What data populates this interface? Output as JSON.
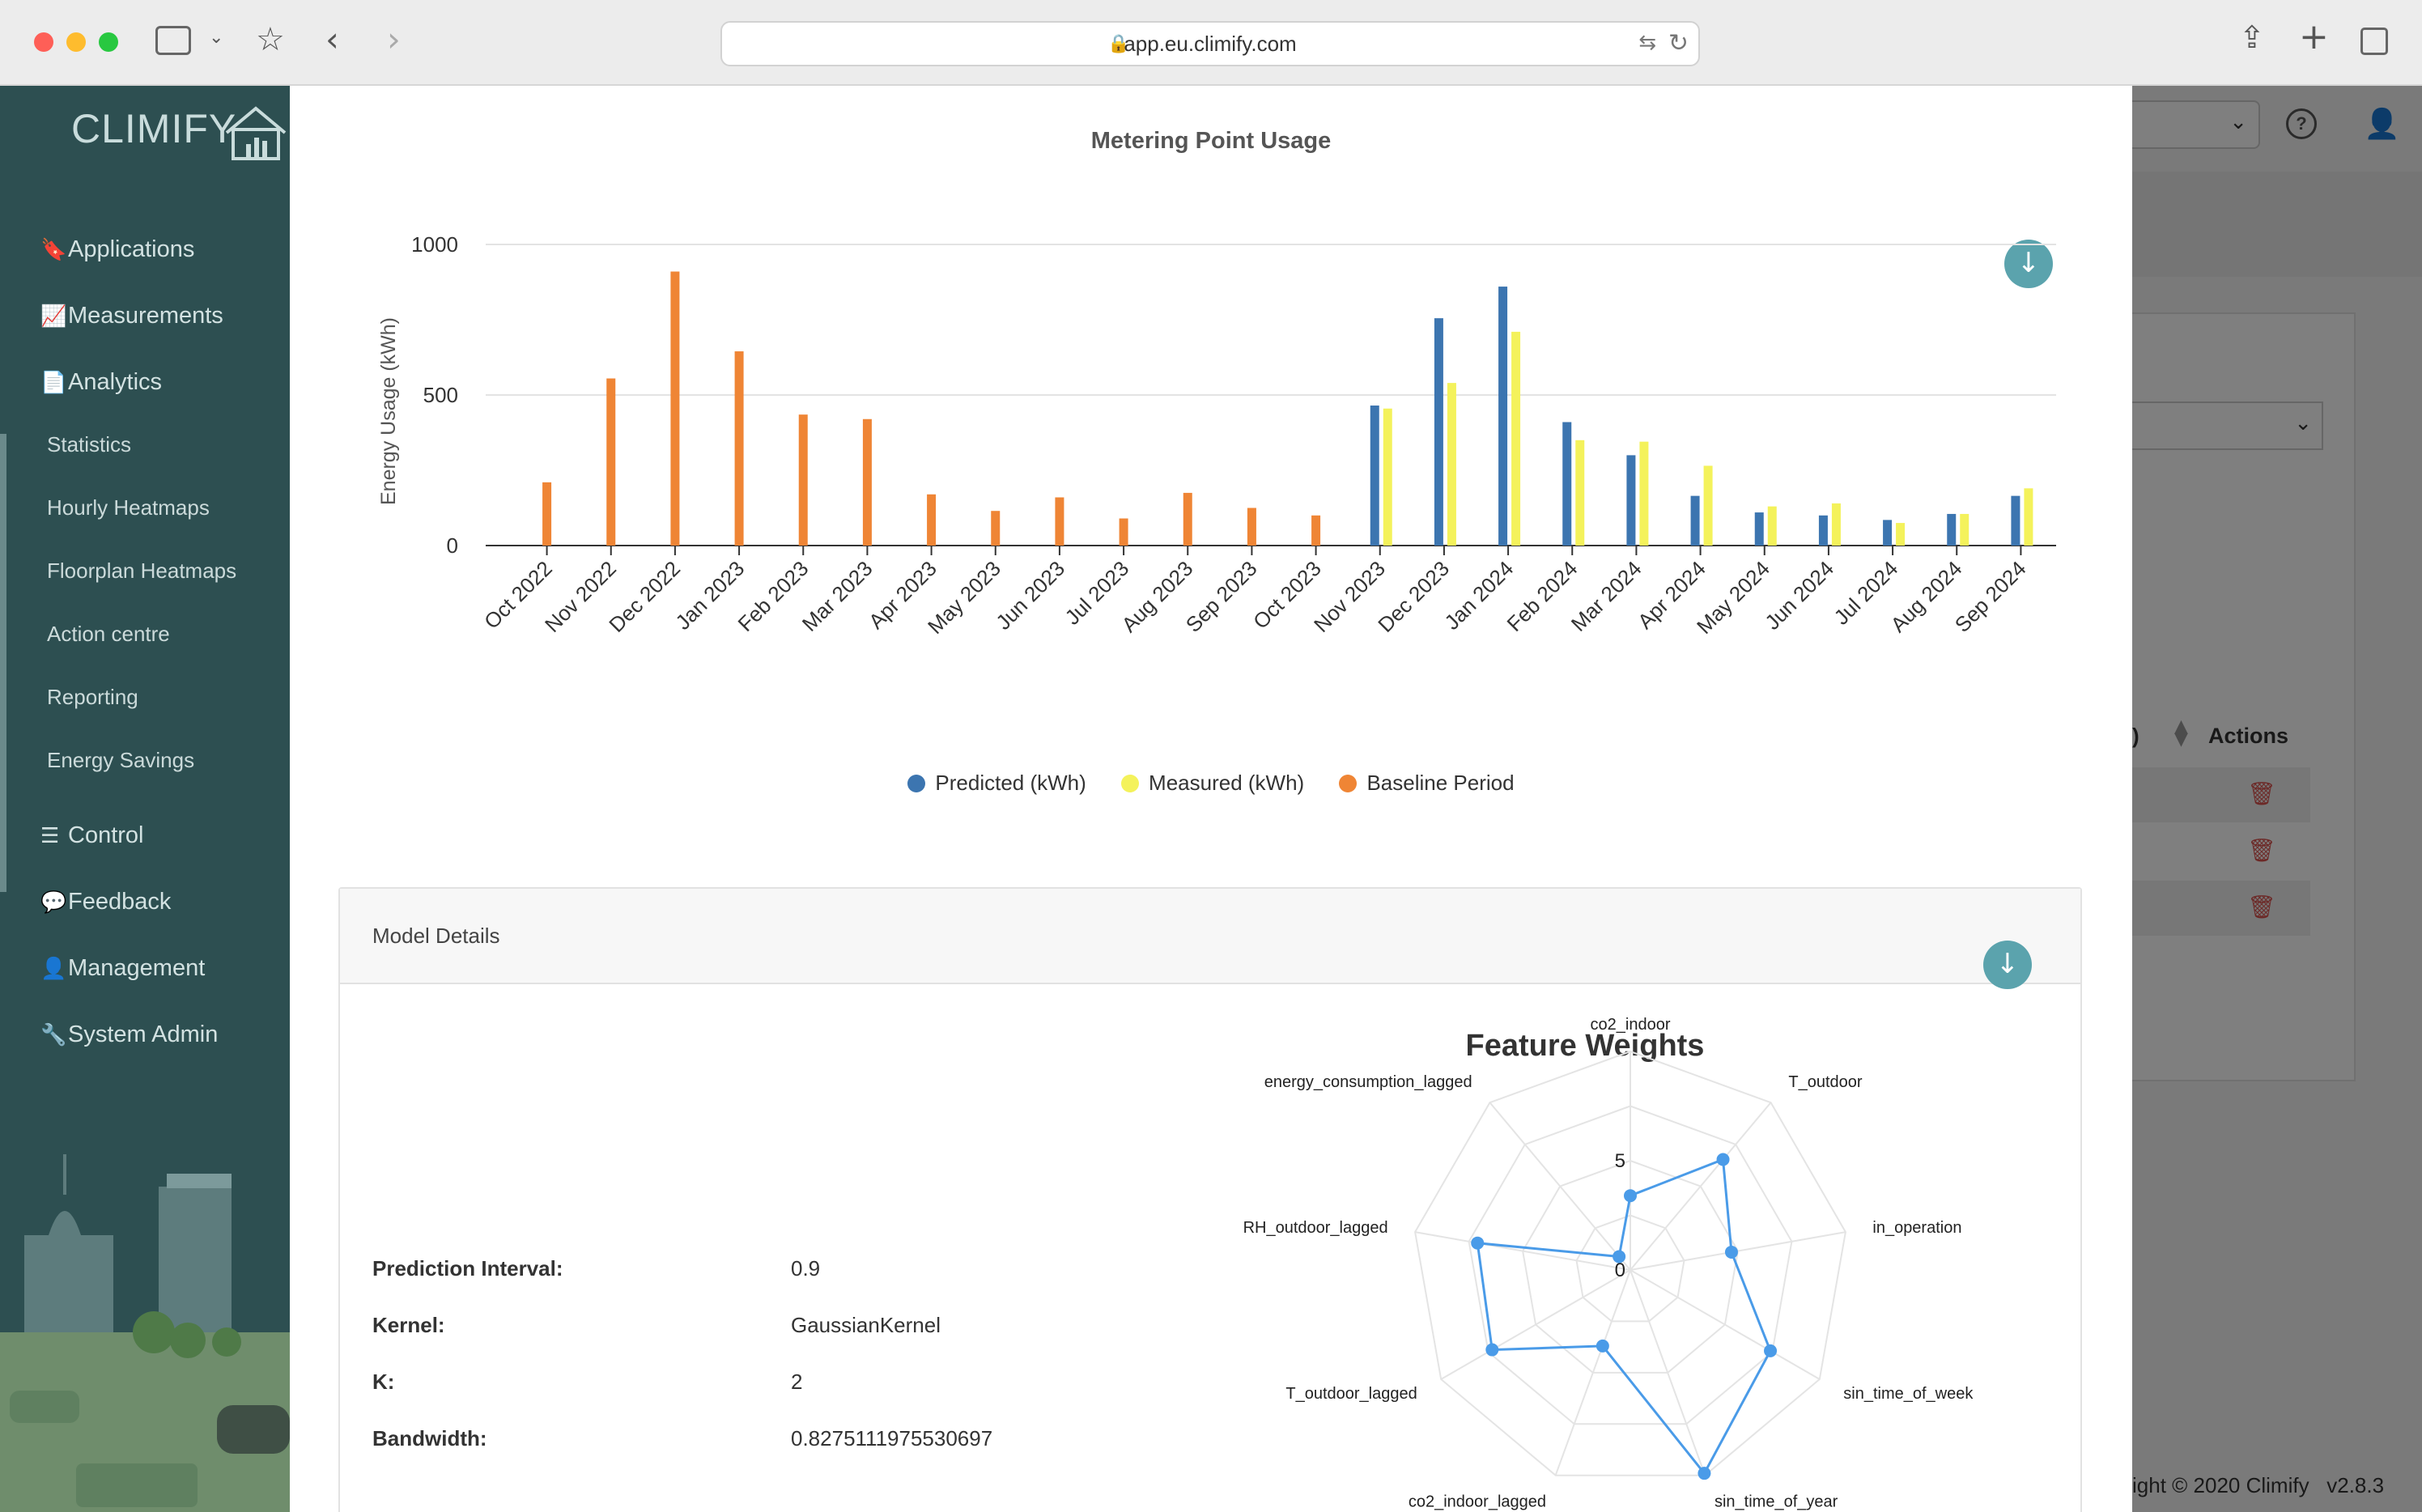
{
  "browser": {
    "url": "app.eu.climify.com"
  },
  "sidebar": {
    "logo": "CLIMIFY",
    "items": [
      {
        "label": "Applications",
        "icon": "bookmark-icon",
        "glyph": "🔖"
      },
      {
        "label": "Measurements",
        "icon": "line-chart-icon",
        "glyph": "📈"
      },
      {
        "label": "Analytics",
        "icon": "document-icon",
        "glyph": "📄"
      }
    ],
    "analytics_sub": [
      "Statistics",
      "Hourly Heatmaps",
      "Floorplan Heatmaps",
      "Action centre",
      "Reporting",
      "Energy Savings"
    ],
    "items_bottom": [
      {
        "label": "Control",
        "icon": "sliders-icon",
        "glyph": "☰"
      },
      {
        "label": "Feedback",
        "icon": "comment-icon",
        "glyph": "💬"
      },
      {
        "label": "Management",
        "icon": "user-cog-icon",
        "glyph": "👤"
      },
      {
        "label": "System Admin",
        "icon": "wrench-icon",
        "glyph": "🔧"
      }
    ]
  },
  "background_page": {
    "table_header": "Actions",
    "table_header_partial": ")",
    "footer": "ight © 2020 Climify   v2.8.3"
  },
  "modal": {
    "chart_title": "Metering Point Usage",
    "details_header": "Model Details",
    "details": [
      {
        "label": "Prediction Interval:",
        "value": "0.9"
      },
      {
        "label": "Kernel:",
        "value": "GaussianKernel"
      },
      {
        "label": "K:",
        "value": "2"
      },
      {
        "label": "Bandwidth:",
        "value": "0.8275111975530697"
      }
    ]
  },
  "chart_data": [
    {
      "type": "bar",
      "title": "Metering Point Usage",
      "xlabel": "",
      "ylabel": "Energy Usage (kWh)",
      "ylim": [
        0,
        1000
      ],
      "yticks": [
        0,
        500,
        1000
      ],
      "grid": true,
      "legend_position": "bottom",
      "categories": [
        "Oct 2022",
        "Nov 2022",
        "Dec 2022",
        "Jan 2023",
        "Feb 2023",
        "Mar 2023",
        "Apr 2023",
        "May 2023",
        "Jun 2023",
        "Jul 2023",
        "Aug 2023",
        "Sep 2023",
        "Oct 2023",
        "Nov 2023",
        "Dec 2023",
        "Jan 2024",
        "Feb 2024",
        "Mar 2024",
        "Apr 2024",
        "May 2024",
        "Jun 2024",
        "Jul 2024",
        "Aug 2024",
        "Sep 2024"
      ],
      "series": [
        {
          "name": "Predicted (kWh)",
          "color": "#3c75b0",
          "values": [
            null,
            null,
            null,
            null,
            null,
            null,
            null,
            null,
            null,
            null,
            null,
            null,
            null,
            465,
            755,
            860,
            410,
            300,
            165,
            110,
            100,
            85,
            105,
            165
          ]
        },
        {
          "name": "Measured (kWh)",
          "color": "#f4f25b",
          "values": [
            null,
            null,
            null,
            null,
            null,
            null,
            null,
            null,
            null,
            null,
            null,
            null,
            null,
            455,
            540,
            710,
            350,
            345,
            265,
            130,
            140,
            75,
            105,
            190
          ]
        },
        {
          "name": "Baseline Period",
          "color": "#ef8535",
          "values": [
            210,
            555,
            910,
            645,
            435,
            420,
            170,
            115,
            160,
            90,
            175,
            125,
            100,
            null,
            null,
            null,
            null,
            null,
            null,
            null,
            null,
            null,
            null,
            null
          ]
        }
      ]
    },
    {
      "type": "radar",
      "title": "Feature Weights",
      "color": "#4a9be8",
      "r_ticks": [
        0,
        5
      ],
      "categories": [
        "co2_indoor",
        "T_outdoor",
        "in_operation",
        "sin_time_of_week",
        "sin_time_of_year",
        "co2_indoor_lagged",
        "T_outdoor_lagged",
        "RH_outdoor_lagged",
        "energy_consumption_lagged"
      ],
      "values": [
        3.4,
        6.6,
        4.7,
        7.4,
        9.9,
        3.7,
        7.3,
        7.1,
        0.8
      ]
    }
  ]
}
